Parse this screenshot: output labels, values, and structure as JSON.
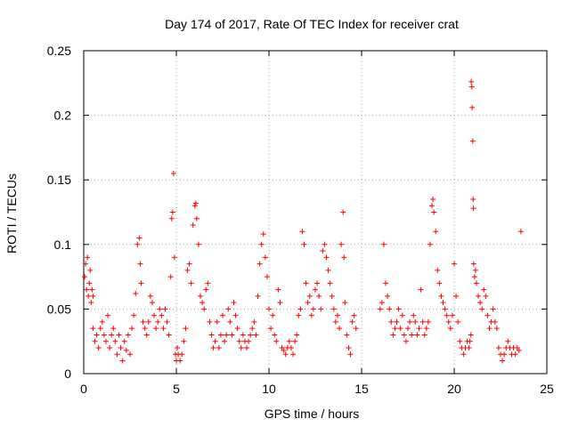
{
  "chart_data": {
    "type": "scatter",
    "title": "Day 174 of 2017, Rate Of TEC Index for receiver crat",
    "xlabel": "GPS time / hours",
    "ylabel": "ROTI / TECUs",
    "xlim": [
      0,
      25
    ],
    "ylim": [
      0,
      0.25
    ],
    "xticks": [
      0,
      5,
      10,
      15,
      20,
      25
    ],
    "yticks": [
      0,
      0.05,
      0.1,
      0.15,
      0.2,
      0.25
    ],
    "xtick_labels": [
      "0",
      "5",
      "10",
      "15",
      "20",
      "25"
    ],
    "ytick_labels": [
      "0",
      "0.05",
      "0.1",
      "0.15",
      "0.2",
      "0.25"
    ],
    "grid": true,
    "marker": "+",
    "color": "#ff0000",
    "series": [
      {
        "name": "ROTI",
        "points": [
          [
            0.05,
            0.075
          ],
          [
            0.1,
            0.085
          ],
          [
            0.15,
            0.065
          ],
          [
            0.2,
            0.09
          ],
          [
            0.25,
            0.06
          ],
          [
            0.3,
            0.07
          ],
          [
            0.35,
            0.08
          ],
          [
            0.4,
            0.055
          ],
          [
            0.45,
            0.065
          ],
          [
            0.5,
            0.06
          ],
          [
            0.5,
            0.035
          ],
          [
            0.6,
            0.025
          ],
          [
            0.7,
            0.03
          ],
          [
            0.8,
            0.02
          ],
          [
            0.9,
            0.035
          ],
          [
            1.0,
            0.04
          ],
          [
            1.1,
            0.03
          ],
          [
            1.2,
            0.025
          ],
          [
            1.3,
            0.045
          ],
          [
            1.4,
            0.02
          ],
          [
            1.5,
            0.03
          ],
          [
            1.6,
            0.035
          ],
          [
            1.7,
            0.025
          ],
          [
            1.8,
            0.015
          ],
          [
            1.9,
            0.03
          ],
          [
            2.0,
            0.02
          ],
          [
            2.1,
            0.01
          ],
          [
            2.2,
            0.025
          ],
          [
            2.3,
            0.018
          ],
          [
            2.4,
            0.03
          ],
          [
            2.5,
            0.015
          ],
          [
            2.6,
            0.035
          ],
          [
            2.7,
            0.045
          ],
          [
            2.8,
            0.062
          ],
          [
            2.9,
            0.1
          ],
          [
            3.0,
            0.105
          ],
          [
            3.05,
            0.085
          ],
          [
            3.1,
            0.07
          ],
          [
            3.2,
            0.04
          ],
          [
            3.3,
            0.035
          ],
          [
            3.4,
            0.03
          ],
          [
            3.5,
            0.04
          ],
          [
            3.6,
            0.06
          ],
          [
            3.7,
            0.055
          ],
          [
            3.8,
            0.045
          ],
          [
            3.9,
            0.035
          ],
          [
            4.0,
            0.04
          ],
          [
            4.1,
            0.05
          ],
          [
            4.2,
            0.045
          ],
          [
            4.3,
            0.035
          ],
          [
            4.4,
            0.05
          ],
          [
            4.5,
            0.04
          ],
          [
            4.6,
            0.03
          ],
          [
            4.7,
            0.075
          ],
          [
            4.75,
            0.12
          ],
          [
            4.8,
            0.125
          ],
          [
            4.85,
            0.155
          ],
          [
            4.9,
            0.09
          ],
          [
            4.95,
            0.015
          ],
          [
            5.0,
            0.01
          ],
          [
            5.05,
            0.02
          ],
          [
            5.1,
            0.015
          ],
          [
            5.2,
            0.01
          ],
          [
            5.3,
            0.015
          ],
          [
            5.4,
            0.025
          ],
          [
            5.5,
            0.035
          ],
          [
            5.6,
            0.08
          ],
          [
            5.7,
            0.085
          ],
          [
            5.8,
            0.07
          ],
          [
            5.9,
            0.115
          ],
          [
            6.0,
            0.13
          ],
          [
            6.05,
            0.132
          ],
          [
            6.1,
            0.12
          ],
          [
            6.2,
            0.1
          ],
          [
            6.3,
            0.06
          ],
          [
            6.4,
            0.055
          ],
          [
            6.5,
            0.05
          ],
          [
            6.6,
            0.065
          ],
          [
            6.7,
            0.07
          ],
          [
            6.8,
            0.04
          ],
          [
            6.9,
            0.03
          ],
          [
            7.0,
            0.02
          ],
          [
            7.1,
            0.025
          ],
          [
            7.2,
            0.04
          ],
          [
            7.3,
            0.02
          ],
          [
            7.4,
            0.03
          ],
          [
            7.5,
            0.045
          ],
          [
            7.6,
            0.025
          ],
          [
            7.7,
            0.03
          ],
          [
            7.8,
            0.05
          ],
          [
            7.9,
            0.04
          ],
          [
            8.0,
            0.03
          ],
          [
            8.1,
            0.055
          ],
          [
            8.2,
            0.045
          ],
          [
            8.3,
            0.035
          ],
          [
            8.4,
            0.025
          ],
          [
            8.5,
            0.02
          ],
          [
            8.6,
            0.03
          ],
          [
            8.7,
            0.025
          ],
          [
            8.8,
            0.02
          ],
          [
            8.9,
            0.025
          ],
          [
            9.0,
            0.03
          ],
          [
            9.1,
            0.035
          ],
          [
            9.2,
            0.04
          ],
          [
            9.3,
            0.03
          ],
          [
            9.4,
            0.06
          ],
          [
            9.5,
            0.085
          ],
          [
            9.6,
            0.1
          ],
          [
            9.7,
            0.108
          ],
          [
            9.8,
            0.09
          ],
          [
            9.9,
            0.075
          ],
          [
            10.0,
            0.05
          ],
          [
            10.1,
            0.035
          ],
          [
            10.2,
            0.045
          ],
          [
            10.3,
            0.03
          ],
          [
            10.4,
            0.025
          ],
          [
            10.5,
            0.065
          ],
          [
            10.6,
            0.055
          ],
          [
            10.7,
            0.02
          ],
          [
            10.8,
            0.018
          ],
          [
            10.9,
            0.015
          ],
          [
            11.0,
            0.02
          ],
          [
            11.1,
            0.025
          ],
          [
            11.2,
            0.02
          ],
          [
            11.3,
            0.015
          ],
          [
            11.4,
            0.025
          ],
          [
            11.5,
            0.03
          ],
          [
            11.6,
            0.045
          ],
          [
            11.7,
            0.05
          ],
          [
            11.8,
            0.11
          ],
          [
            11.9,
            0.1
          ],
          [
            12.0,
            0.07
          ],
          [
            12.1,
            0.055
          ],
          [
            12.2,
            0.06
          ],
          [
            12.3,
            0.045
          ],
          [
            12.4,
            0.05
          ],
          [
            12.5,
            0.065
          ],
          [
            12.6,
            0.07
          ],
          [
            12.7,
            0.06
          ],
          [
            12.8,
            0.05
          ],
          [
            12.9,
            0.095
          ],
          [
            13.0,
            0.1
          ],
          [
            13.1,
            0.09
          ],
          [
            13.2,
            0.08
          ],
          [
            13.3,
            0.07
          ],
          [
            13.4,
            0.06
          ],
          [
            13.5,
            0.05
          ],
          [
            13.6,
            0.04
          ],
          [
            13.7,
            0.045
          ],
          [
            13.8,
            0.035
          ],
          [
            13.9,
            0.1
          ],
          [
            14.0,
            0.125
          ],
          [
            14.05,
            0.09
          ],
          [
            14.1,
            0.055
          ],
          [
            14.2,
            0.03
          ],
          [
            14.3,
            0.02
          ],
          [
            14.4,
            0.015
          ],
          [
            14.5,
            0.04
          ],
          [
            14.6,
            0.045
          ],
          [
            14.7,
            0.035
          ],
          [
            16.0,
            0.05
          ],
          [
            16.1,
            0.055
          ],
          [
            16.2,
            0.1
          ],
          [
            16.3,
            0.07
          ],
          [
            16.4,
            0.06
          ],
          [
            16.5,
            0.05
          ],
          [
            16.6,
            0.04
          ],
          [
            16.7,
            0.03
          ],
          [
            16.8,
            0.035
          ],
          [
            16.9,
            0.04
          ],
          [
            17.0,
            0.05
          ],
          [
            17.1,
            0.035
          ],
          [
            17.2,
            0.045
          ],
          [
            17.3,
            0.03
          ],
          [
            17.4,
            0.025
          ],
          [
            17.5,
            0.035
          ],
          [
            17.6,
            0.04
          ],
          [
            17.7,
            0.03
          ],
          [
            17.8,
            0.045
          ],
          [
            17.9,
            0.04
          ],
          [
            18.0,
            0.03
          ],
          [
            18.1,
            0.035
          ],
          [
            18.2,
            0.065
          ],
          [
            18.3,
            0.04
          ],
          [
            18.4,
            0.03
          ],
          [
            18.5,
            0.035
          ],
          [
            18.6,
            0.04
          ],
          [
            18.7,
            0.1
          ],
          [
            18.8,
            0.13
          ],
          [
            18.85,
            0.135
          ],
          [
            18.9,
            0.125
          ],
          [
            19.0,
            0.11
          ],
          [
            19.1,
            0.08
          ],
          [
            19.2,
            0.07
          ],
          [
            19.3,
            0.06
          ],
          [
            19.4,
            0.055
          ],
          [
            19.5,
            0.05
          ],
          [
            19.6,
            0.045
          ],
          [
            19.7,
            0.04
          ],
          [
            19.8,
            0.035
          ],
          [
            19.9,
            0.045
          ],
          [
            20.0,
            0.085
          ],
          [
            20.1,
            0.06
          ],
          [
            20.2,
            0.04
          ],
          [
            20.3,
            0.025
          ],
          [
            20.4,
            0.02
          ],
          [
            20.5,
            0.015
          ],
          [
            20.6,
            0.02
          ],
          [
            20.7,
            0.025
          ],
          [
            20.8,
            0.02
          ],
          [
            20.85,
            0.025
          ],
          [
            20.9,
            0.03
          ],
          [
            20.92,
            0.226
          ],
          [
            20.95,
            0.222
          ],
          [
            20.97,
            0.206
          ],
          [
            21.0,
            0.18
          ],
          [
            21.02,
            0.135
          ],
          [
            21.04,
            0.128
          ],
          [
            21.05,
            0.085
          ],
          [
            21.1,
            0.075
          ],
          [
            21.15,
            0.08
          ],
          [
            21.2,
            0.07
          ],
          [
            21.3,
            0.06
          ],
          [
            21.4,
            0.055
          ],
          [
            21.5,
            0.05
          ],
          [
            21.6,
            0.065
          ],
          [
            21.7,
            0.06
          ],
          [
            21.8,
            0.045
          ],
          [
            21.9,
            0.035
          ],
          [
            22.0,
            0.04
          ],
          [
            22.1,
            0.05
          ],
          [
            22.2,
            0.04
          ],
          [
            22.3,
            0.035
          ],
          [
            22.4,
            0.02
          ],
          [
            22.5,
            0.015
          ],
          [
            22.6,
            0.01
          ],
          [
            22.7,
            0.015
          ],
          [
            22.8,
            0.02
          ],
          [
            22.9,
            0.025
          ],
          [
            23.0,
            0.02
          ],
          [
            23.1,
            0.015
          ],
          [
            23.2,
            0.02
          ],
          [
            23.3,
            0.015
          ],
          [
            23.4,
            0.02
          ],
          [
            23.5,
            0.018
          ],
          [
            23.6,
            0.11
          ]
        ]
      }
    ]
  }
}
